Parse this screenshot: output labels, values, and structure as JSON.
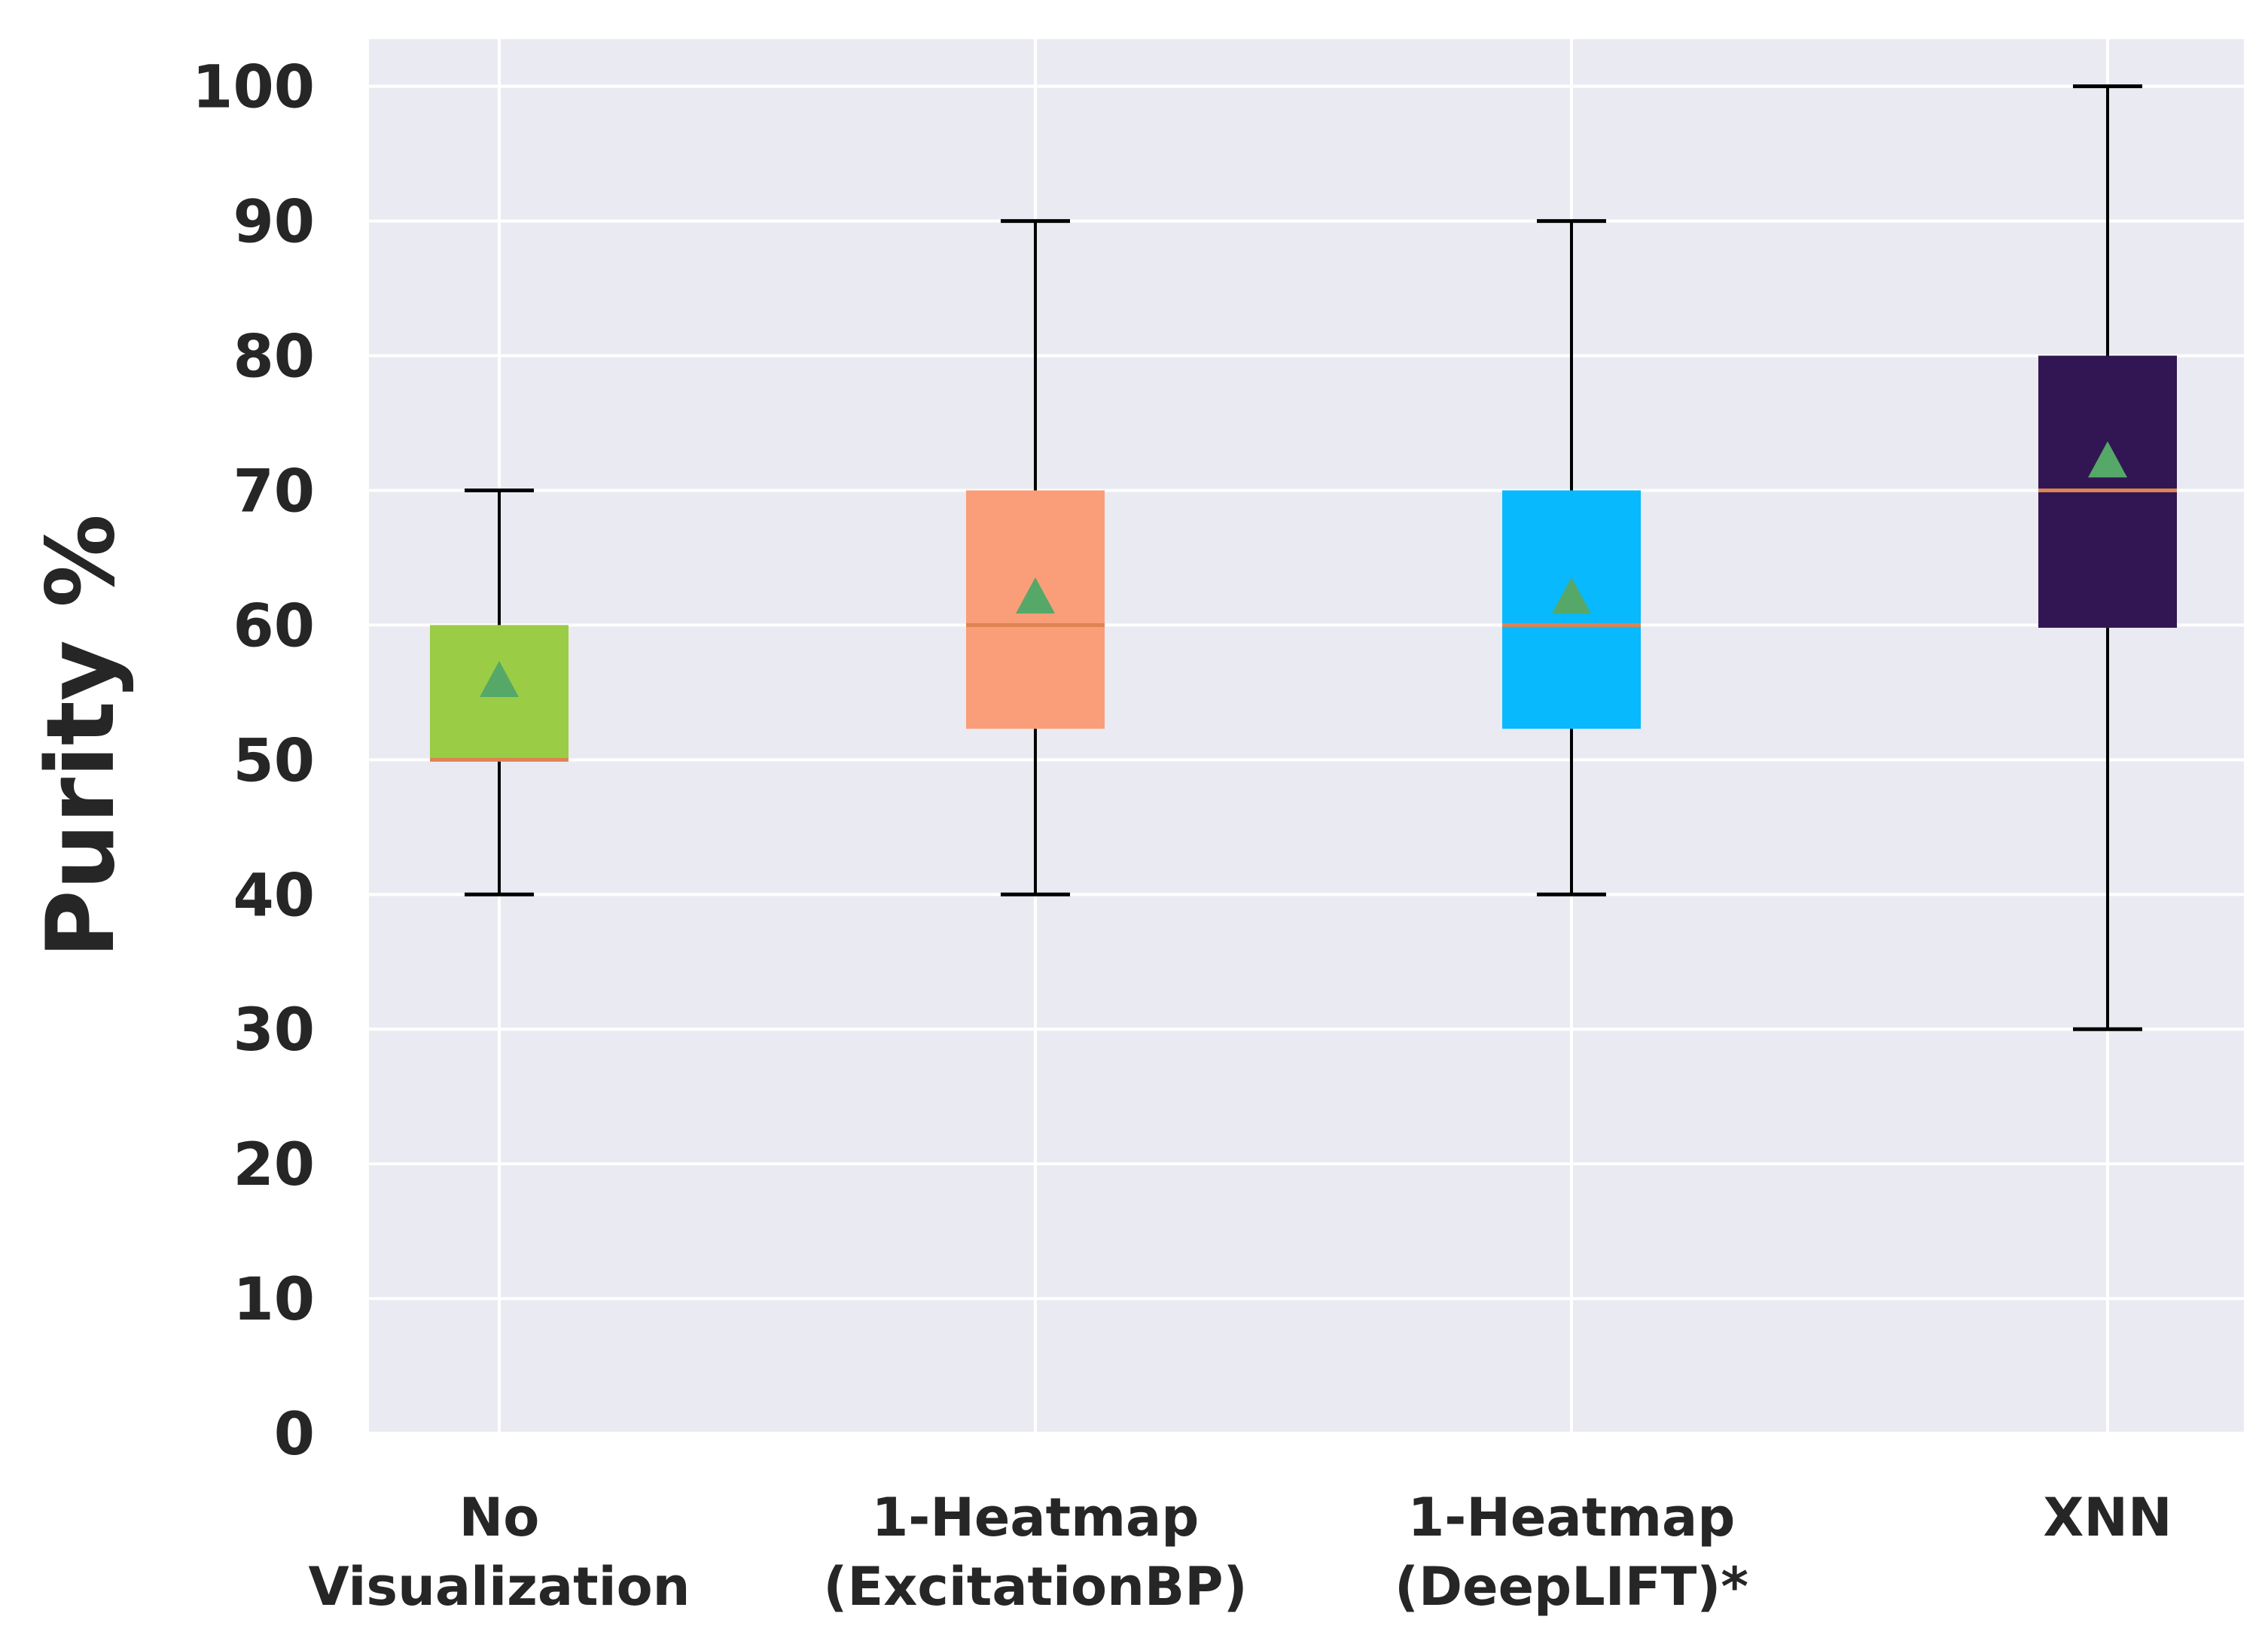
{
  "chart_data": {
    "type": "box",
    "title": "",
    "xlabel": "",
    "ylabel": "Purity %",
    "ylim": [
      0,
      103.5
    ],
    "yticks": [
      "0",
      "10",
      "20",
      "30",
      "40",
      "50",
      "60",
      "70",
      "80",
      "90",
      "100"
    ],
    "grid": true,
    "categories": [
      {
        "lines": [
          "No",
          "Visualization"
        ]
      },
      {
        "lines": [
          "1-Heatmap",
          "(ExcitationBP)"
        ]
      },
      {
        "lines": [
          "1-Heatmap",
          "(DeepLIFT)*"
        ]
      },
      {
        "lines": [
          "XNN"
        ]
      }
    ],
    "series": [
      {
        "name": "No Visualization",
        "whisker_low": 40,
        "q1": 50,
        "median": 50,
        "q3": 60,
        "whisker_high": 70,
        "mean": 56,
        "color": "#9ACD45"
      },
      {
        "name": "1-Heatmap (ExcitationBP)",
        "whisker_low": 40,
        "q1": 52.3,
        "median": 60,
        "q3": 70,
        "whisker_high": 90,
        "mean": 62.2,
        "color": "#FA9E79"
      },
      {
        "name": "1-Heatmap (DeepLIFT)*",
        "whisker_low": 40,
        "q1": 52.3,
        "median": 60,
        "q3": 70,
        "whisker_high": 90,
        "mean": 62.2,
        "color": "#08B9FE"
      },
      {
        "name": "XNN",
        "whisker_low": 30,
        "q1": 59.8,
        "median": 70,
        "q3": 80,
        "whisker_high": 100,
        "mean": 72.3,
        "color": "#311653"
      }
    ],
    "median_color": "#DD8452",
    "mean_marker_color": "#55A868",
    "background": "#EAEAF2"
  }
}
